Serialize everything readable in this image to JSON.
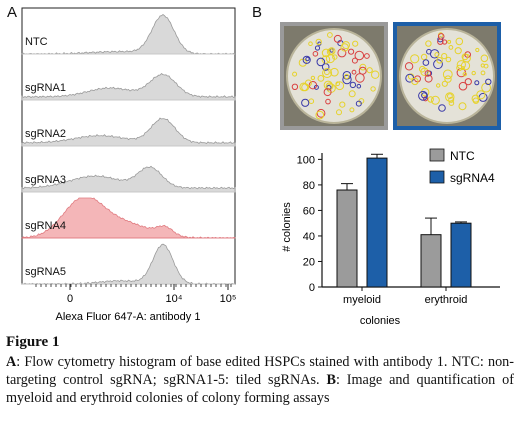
{
  "panel_a": {
    "label": "A",
    "rows": [
      {
        "label": "NTC",
        "highlight": false
      },
      {
        "label": "sgRNA1",
        "highlight": false
      },
      {
        "label": "sgRNA2",
        "highlight": false
      },
      {
        "label": "sgRNA3",
        "highlight": false
      },
      {
        "label": "sgRNA4",
        "highlight": true
      },
      {
        "label": "sgRNA5",
        "highlight": false
      }
    ],
    "x_ticks": [
      "0",
      "10⁴",
      "10⁵"
    ],
    "x_axis_label": "Alexa Fluor 647-A: antibody 1",
    "colors": {
      "gray_fill": "#d9d9d9",
      "gray_line": "#9a9a9a",
      "red_fill": "#f4b6b8",
      "red_line": "#e07b80"
    }
  },
  "panel_b": {
    "label": "B",
    "dish_frame_colors": {
      "ntc": "#9a9a9a",
      "sgrna4": "#1d5fa8"
    },
    "chart_data": {
      "type": "bar",
      "categories": [
        "myeloid",
        "erythroid"
      ],
      "series": [
        {
          "name": "NTC",
          "values": [
            76,
            41
          ],
          "errors": [
            5,
            13
          ],
          "color": "#9b9b9b"
        },
        {
          "name": "sgRNA4",
          "values": [
            101,
            50
          ],
          "errors": [
            3,
            1
          ],
          "color": "#1d5fa8"
        }
      ],
      "title": "",
      "xlabel": "colonies",
      "ylabel": "# colonies",
      "ylim": [
        0,
        100
      ],
      "yticks": [
        0,
        20,
        40,
        60,
        80,
        100
      ],
      "legend": "top-right"
    }
  },
  "caption": {
    "title": "Figure 1",
    "a_label": "A",
    "a_text": ": Flow cytometry histogram of base edited HSPCs stained with antibody 1. NTC: non-targeting control sgRNA; sgRNA1-5: tiled sgRNAs. ",
    "b_label": "B",
    "b_text": ": Image and quantification of myeloid and erythroid colonies of colony forming assays"
  }
}
